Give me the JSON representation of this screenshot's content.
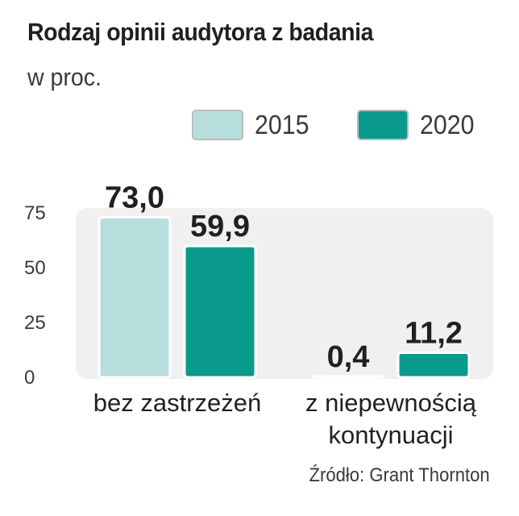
{
  "title": "Rodzaj opinii audytora z badania",
  "subtitle": "w proc.",
  "source": "Źródło: Grant Thornton",
  "colors": {
    "s2015": "#b7dedd",
    "s2020": "#0a9a8c",
    "plot_bg": "#f0f0f1"
  },
  "chart_data": {
    "type": "bar",
    "title": "Rodzaj opinii audytora z badania",
    "subtitle": "w proc.",
    "categories": [
      "bez zastrzeżeń",
      "z niepewnością kontynuacji"
    ],
    "category_lines": [
      [
        "bez zastrzeżeń"
      ],
      [
        "z niepewnością",
        "kontynuacji"
      ]
    ],
    "series": [
      {
        "name": "2015",
        "values": [
          73.0,
          0.4
        ],
        "labels": [
          "73,0",
          "0,4"
        ]
      },
      {
        "name": "2020",
        "values": [
          59.9,
          11.2
        ],
        "labels": [
          "59,9",
          "11,2"
        ]
      }
    ],
    "yticks": [
      0,
      25,
      50,
      75
    ],
    "ylim": [
      0,
      75
    ],
    "legend_position": "top-right",
    "grid": false
  }
}
